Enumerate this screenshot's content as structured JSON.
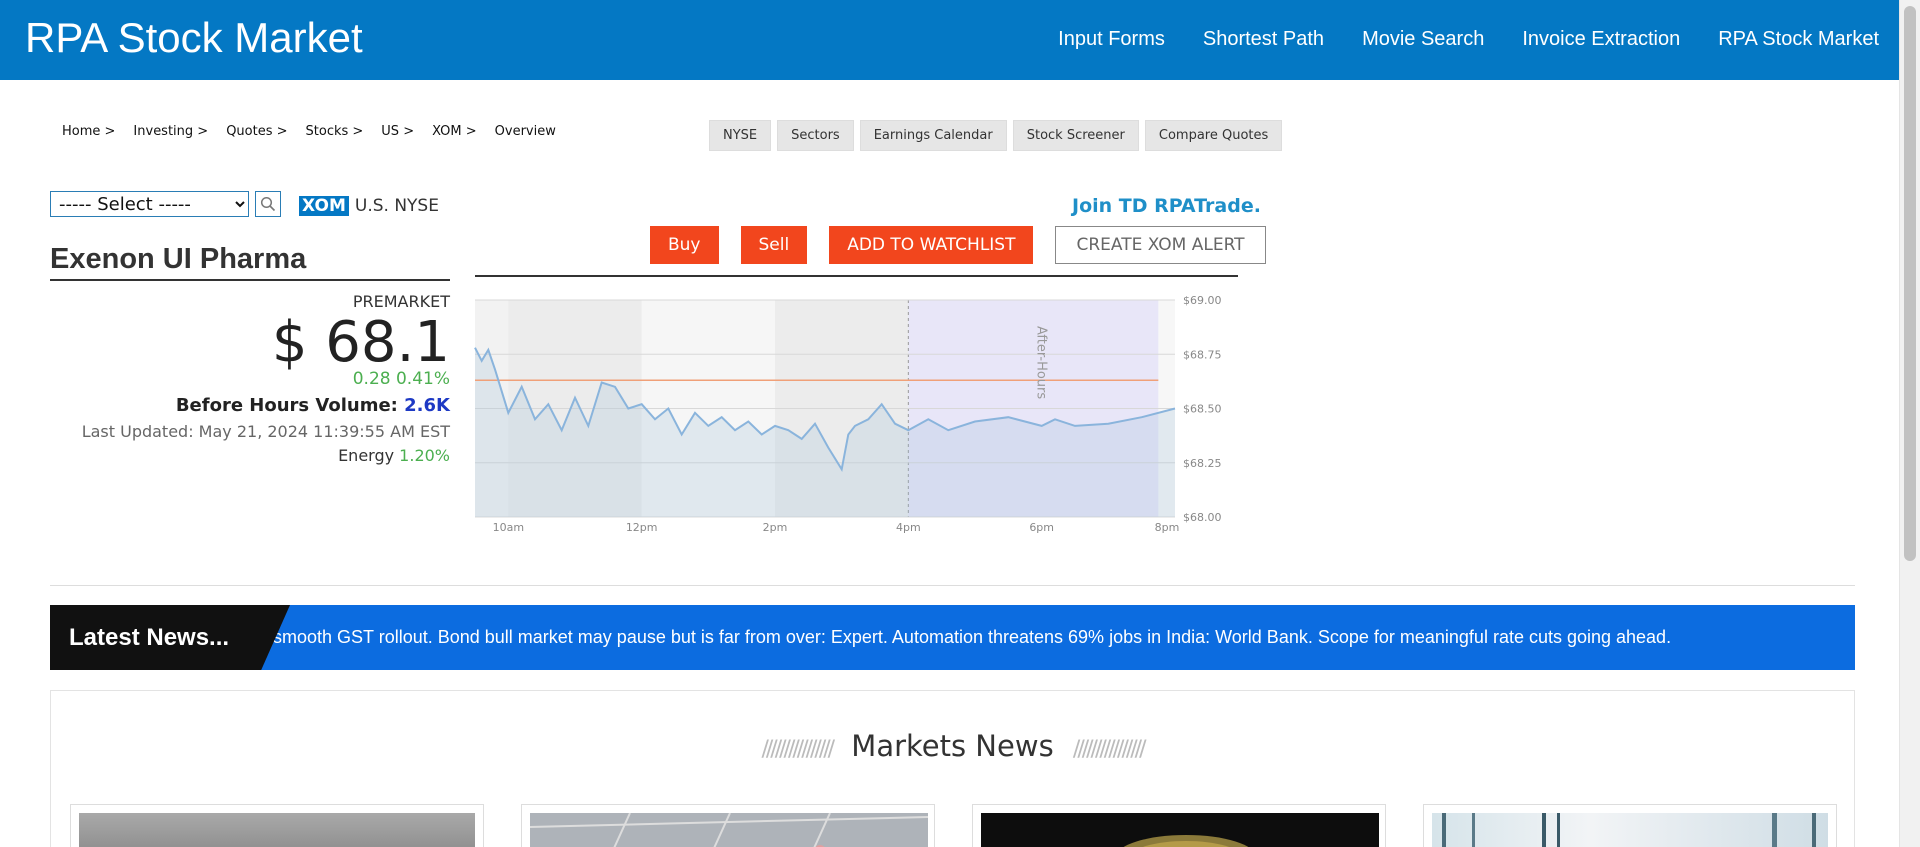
{
  "header": {
    "brand": "RPA Stock Market",
    "nav": [
      "Input Forms",
      "Shortest Path",
      "Movie Search",
      "Invoice Extraction",
      "RPA Stock Market"
    ]
  },
  "breadcrumb": [
    "Home >",
    "Investing >",
    "Quotes >",
    "Stocks >",
    "US >",
    "XOM >",
    "Overview"
  ],
  "subtabs": [
    "NYSE",
    "Sectors",
    "Earnings Calendar",
    "Stock Screener",
    "Compare Quotes"
  ],
  "search": {
    "selected": "----- Select -----"
  },
  "symbol": {
    "code": "XOM",
    "exchange": "U.S. NYSE"
  },
  "join_text": "Join TD RPATrade.",
  "actions": {
    "buy": "Buy",
    "sell": "Sell",
    "watchlist": "ADD TO WATCHLIST",
    "alert": "CREATE XOM ALERT"
  },
  "company": {
    "name": "Exenon UI Pharma"
  },
  "quote": {
    "session": "PREMARKET",
    "price": "$ 68.1",
    "change": "0.28 0.41%",
    "volume_label": "Before Hours Volume:",
    "volume_value": "2.6K",
    "last_updated": "Last Updated: May 21, 2024 11:39:55 AM EST",
    "sector_name": "Energy",
    "sector_change": "1.20%"
  },
  "chart_data": {
    "type": "line",
    "x_ticks": [
      "10am",
      "12pm",
      "2pm",
      "4pm",
      "6pm",
      "8pm"
    ],
    "y_ticks": [
      "$69.00",
      "$68.75",
      "$68.50",
      "$68.25",
      "$68.00"
    ],
    "ylim": [
      68.0,
      69.0
    ],
    "xlim_hours": [
      9.5,
      20.0
    ],
    "shaded_label": "After-Hours",
    "reference_line": 68.63,
    "series": [
      {
        "x": [
          9.5,
          9.6,
          9.7,
          9.8,
          10.0,
          10.2,
          10.4,
          10.6,
          10.8,
          11.0,
          11.2,
          11.4,
          11.6,
          11.8,
          12.0,
          12.2,
          12.4,
          12.6,
          12.8,
          13.0,
          13.2,
          13.4,
          13.6,
          13.8,
          14.0,
          14.2,
          14.4,
          14.6,
          14.8,
          15.0,
          15.1,
          15.2,
          15.4,
          15.6,
          15.8,
          16.0,
          16.3,
          16.6,
          17.0,
          17.5,
          18.0,
          18.2,
          18.5,
          19.0,
          19.5,
          20.0
        ],
        "y": [
          68.78,
          68.72,
          68.77,
          68.68,
          68.48,
          68.6,
          68.45,
          68.52,
          68.4,
          68.55,
          68.42,
          68.62,
          68.6,
          68.5,
          68.52,
          68.45,
          68.5,
          68.38,
          68.48,
          68.42,
          68.46,
          68.4,
          68.44,
          68.38,
          68.42,
          68.4,
          68.36,
          68.43,
          68.32,
          68.22,
          68.38,
          68.42,
          68.45,
          68.52,
          68.43,
          68.4,
          68.45,
          68.4,
          68.44,
          68.46,
          68.42,
          68.45,
          68.42,
          68.43,
          68.46,
          68.5
        ]
      }
    ]
  },
  "news_ticker": {
    "label": "Latest News...",
    "text": "r smooth GST rollout. Bond bull market may pause but is far from over: Expert. Automation threatens 69% jobs in India: World Bank. Scope for meaningful rate cuts going ahead."
  },
  "markets_news": {
    "title": "Markets News",
    "slashes": "////////////////"
  }
}
